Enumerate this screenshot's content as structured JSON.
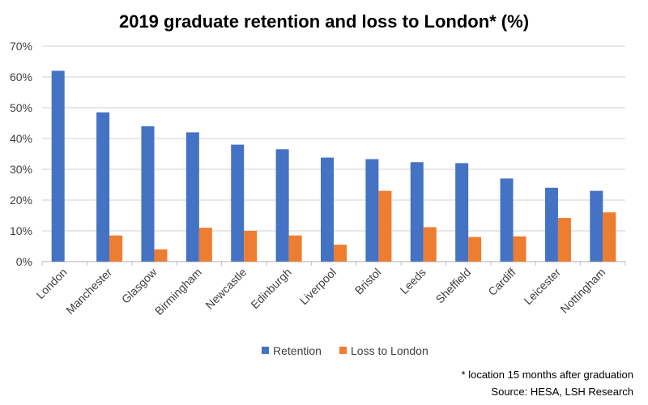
{
  "chart_data": {
    "type": "bar",
    "title": "2019 graduate retention and loss to London* (%)",
    "xlabel": "",
    "ylabel": "",
    "ylim": [
      0,
      70
    ],
    "yticks": [
      "0%",
      "10%",
      "20%",
      "30%",
      "40%",
      "50%",
      "60%",
      "70%"
    ],
    "grid": true,
    "legend_position": "bottom",
    "categories": [
      "London",
      "Manchester",
      "Glasgow",
      "Birmingham",
      "Newcastle",
      "Edinburgh",
      "Liverpool",
      "Bristol",
      "Leeds",
      "Sheffield",
      "Cardiff",
      "Leicester",
      "Nottingham"
    ],
    "series": [
      {
        "name": "Retention",
        "color": "#4472C4",
        "values": [
          62,
          48.5,
          44,
          42,
          38,
          36.5,
          33.8,
          33.3,
          32.3,
          32,
          27,
          24,
          23
        ]
      },
      {
        "name": "Loss to London",
        "color": "#ED7D31",
        "values": [
          0,
          8.5,
          4,
          11,
          10,
          8.5,
          5.5,
          23,
          11.2,
          8,
          8.2,
          14.2,
          16
        ]
      }
    ],
    "footnote": "* location 15 months after graduation",
    "source": "Source: HESA, LSH Research"
  }
}
